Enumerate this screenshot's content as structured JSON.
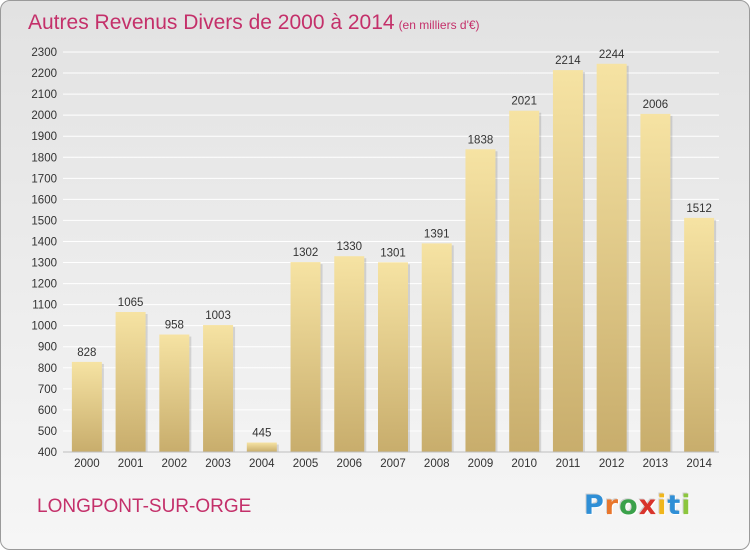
{
  "title": "Autres Revenus Divers de 2000 à 2014",
  "title_unit": "(en milliers d'€)",
  "city": "LONGPONT-SUR-ORGE",
  "logo": {
    "text": "Proxiti",
    "letter_colors": [
      "#2f8fd6",
      "#e8762c",
      "#3aa14a",
      "#d8342c",
      "#f0b61c",
      "#2f8fd6",
      "#8cc63e"
    ]
  },
  "colors": {
    "title": "#c4306a",
    "bar_light": "#f6e3a3",
    "bar_dark": "#c8ad6c",
    "grid": "#ffffff",
    "axis_text": "#333333"
  },
  "chart_data": {
    "type": "bar",
    "title": "Autres Revenus Divers de 2000 à 2014",
    "categories": [
      "2000",
      "2001",
      "2002",
      "2003",
      "2004",
      "2005",
      "2006",
      "2007",
      "2008",
      "2009",
      "2010",
      "2011",
      "2012",
      "2013",
      "2014"
    ],
    "values": [
      828,
      1065,
      958,
      1003,
      445,
      1302,
      1330,
      1301,
      1391,
      1838,
      2021,
      2214,
      2244,
      2006,
      1512
    ],
    "ylim": [
      400,
      2300
    ],
    "yticks": [
      400,
      500,
      600,
      700,
      800,
      900,
      1000,
      1100,
      1200,
      1300,
      1400,
      1500,
      1600,
      1700,
      1800,
      1900,
      2000,
      2100,
      2200,
      2300
    ],
    "grid": true,
    "legend": "none",
    "data_labels": true
  }
}
